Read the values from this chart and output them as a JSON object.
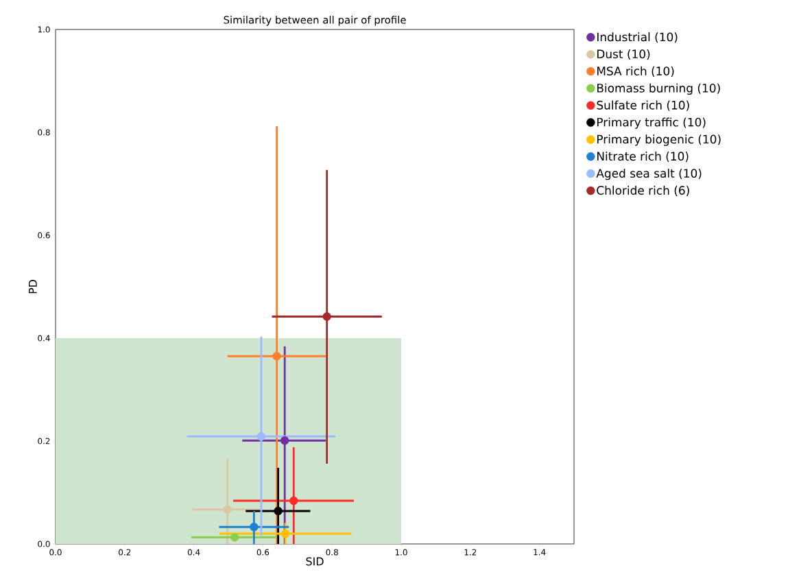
{
  "chart_data": {
    "type": "scatter",
    "title": "Similarity between all pair of profile",
    "xlabel": "SID",
    "ylabel": "PD",
    "xlim": [
      0,
      1.5
    ],
    "ylim": [
      0,
      1
    ],
    "xticks": [
      {
        "value": 0,
        "label": "0.0"
      },
      {
        "value": 0.2,
        "label": "0.2"
      },
      {
        "value": 0.4,
        "label": "0.4"
      },
      {
        "value": 0.6,
        "label": "0.6"
      },
      {
        "value": 0.8,
        "label": "0.8"
      },
      {
        "value": 1.0,
        "label": "1.0"
      },
      {
        "value": 1.2,
        "label": "1.2"
      },
      {
        "value": 1.4,
        "label": "1.4"
      }
    ],
    "yticks": [
      {
        "value": 0,
        "label": "0.0"
      },
      {
        "value": 0.2,
        "label": "0.2"
      },
      {
        "value": 0.4,
        "label": "0.4"
      },
      {
        "value": 0.6,
        "label": "0.6"
      },
      {
        "value": 0.8,
        "label": "0.8"
      },
      {
        "value": 1.0,
        "label": "1.0"
      }
    ],
    "legend": "top right",
    "marker": "circle",
    "series": [
      {
        "type": "area",
        "marker": "none",
        "color": "#cfe5cf",
        "x": [
          0,
          1
        ],
        "values": [
          0.4,
          0.4
        ]
      },
      {
        "name": "Industrial (10)",
        "color": "#7030a0",
        "x": [
          0.663
        ],
        "values": [
          0.201
        ],
        "xerrors": [
          [
            0.54,
            0.782
          ]
        ],
        "errors": [
          [
            0,
            0.384
          ]
        ]
      },
      {
        "name": "Dust (10)",
        "color": "#dcc7a4",
        "x": [
          0.497
        ],
        "values": [
          0.067
        ],
        "xerrors": [
          [
            0.396,
            0.59
          ]
        ],
        "errors": [
          [
            0,
            0.166
          ]
        ]
      },
      {
        "name": "MSA rich (10)",
        "color": "#ff7f2a",
        "x": [
          0.64
        ],
        "values": [
          0.365
        ],
        "xerrors": [
          [
            0.497,
            0.782
          ]
        ],
        "errors": [
          [
            0,
            0.812
          ]
        ]
      },
      {
        "name": "Biomass burning (10)",
        "color": "#8ccd4c",
        "x": [
          0.518
        ],
        "values": [
          0.013
        ],
        "xerrors": [
          [
            0.393,
            0.64
          ]
        ],
        "errors": [
          null
        ]
      },
      {
        "name": "Sulfate rich (10)",
        "color": "#ff2a2a",
        "x": [
          0.689
        ],
        "values": [
          0.084
        ],
        "xerrors": [
          [
            0.514,
            0.863
          ]
        ],
        "errors": [
          [
            0,
            0.188
          ]
        ]
      },
      {
        "name": "Primary traffic (10)",
        "color": "#000000",
        "x": [
          0.644
        ],
        "values": [
          0.064
        ],
        "xerrors": [
          [
            0.55,
            0.737
          ]
        ],
        "errors": [
          [
            0,
            0.148
          ]
        ]
      },
      {
        "name": "Primary biogenic (10)",
        "color": "#ffc000",
        "x": [
          0.665
        ],
        "values": [
          0.02
        ],
        "xerrors": [
          [
            0.474,
            0.856
          ]
        ],
        "errors": [
          [
            0,
            0.041
          ]
        ]
      },
      {
        "name": "Nitrate rich (10)",
        "color": "#1f7fd0",
        "x": [
          0.574
        ],
        "values": [
          0.033
        ],
        "xerrors": [
          [
            0.473,
            0.675
          ]
        ],
        "errors": [
          [
            0,
            0.064
          ]
        ]
      },
      {
        "name": "Aged sea salt (10)",
        "color": "#99bbff",
        "x": [
          0.595
        ],
        "values": [
          0.209
        ],
        "xerrors": [
          [
            0.38,
            0.81
          ]
        ],
        "errors": [
          [
            0.016,
            0.403
          ]
        ]
      },
      {
        "name": "Chloride rich (6)",
        "color": "#a52a2a",
        "x": [
          0.785
        ],
        "values": [
          0.442
        ],
        "xerrors": [
          [
            0.626,
            0.944
          ]
        ],
        "errors": [
          [
            0.156,
            0.727
          ]
        ]
      }
    ]
  }
}
